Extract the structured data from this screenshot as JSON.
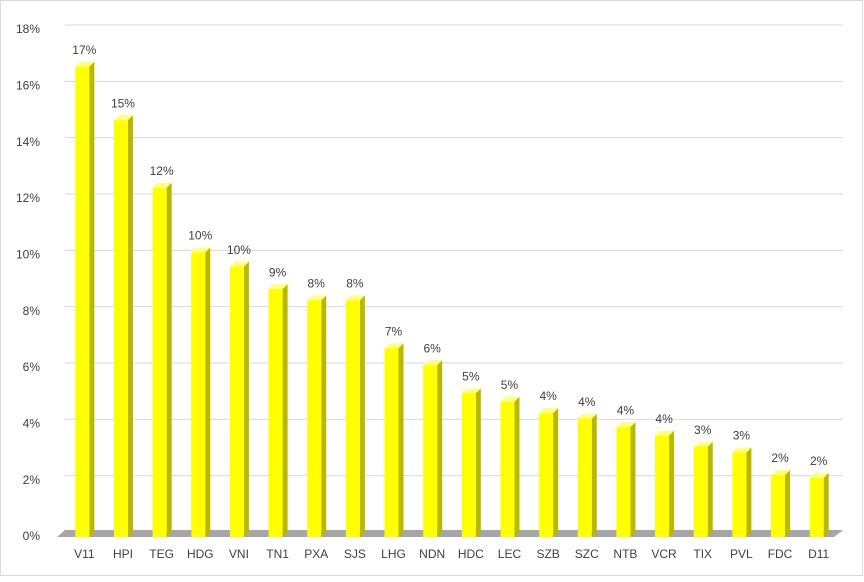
{
  "chart_data": {
    "type": "bar",
    "categories": [
      "V11",
      "HPI",
      "TEG",
      "HDG",
      "VNI",
      "TN1",
      "PXA",
      "SJS",
      "LHG",
      "NDN",
      "HDC",
      "LEC",
      "SZB",
      "SZC",
      "NTB",
      "VCR",
      "TIX",
      "PVL",
      "FDC",
      "D11"
    ],
    "values": [
      16.7,
      14.8,
      12.4,
      10.1,
      9.6,
      8.8,
      8.4,
      8.4,
      6.7,
      6.1,
      5.1,
      4.8,
      4.4,
      4.2,
      3.9,
      3.6,
      3.2,
      3.0,
      2.2,
      2.1
    ],
    "value_labels": [
      "17%",
      "15%",
      "12%",
      "10%",
      "10%",
      "9%",
      "8%",
      "8%",
      "7%",
      "6%",
      "5%",
      "5%",
      "4%",
      "4%",
      "4%",
      "4%",
      "3%",
      "3%",
      "2%",
      "2%"
    ],
    "color": "#ffff00",
    "ylim": [
      0,
      18
    ],
    "yticks": [
      {
        "value": 0,
        "label": "0%"
      },
      {
        "value": 2,
        "label": "2%"
      },
      {
        "value": 4,
        "label": "4%"
      },
      {
        "value": 6,
        "label": "6%"
      },
      {
        "value": 8,
        "label": "8%"
      },
      {
        "value": 10,
        "label": "10%"
      },
      {
        "value": 12,
        "label": "12%"
      },
      {
        "value": 14,
        "label": "14%"
      },
      {
        "value": 16,
        "label": "16%"
      },
      {
        "value": 18,
        "label": "18%"
      }
    ],
    "grid": true
  }
}
